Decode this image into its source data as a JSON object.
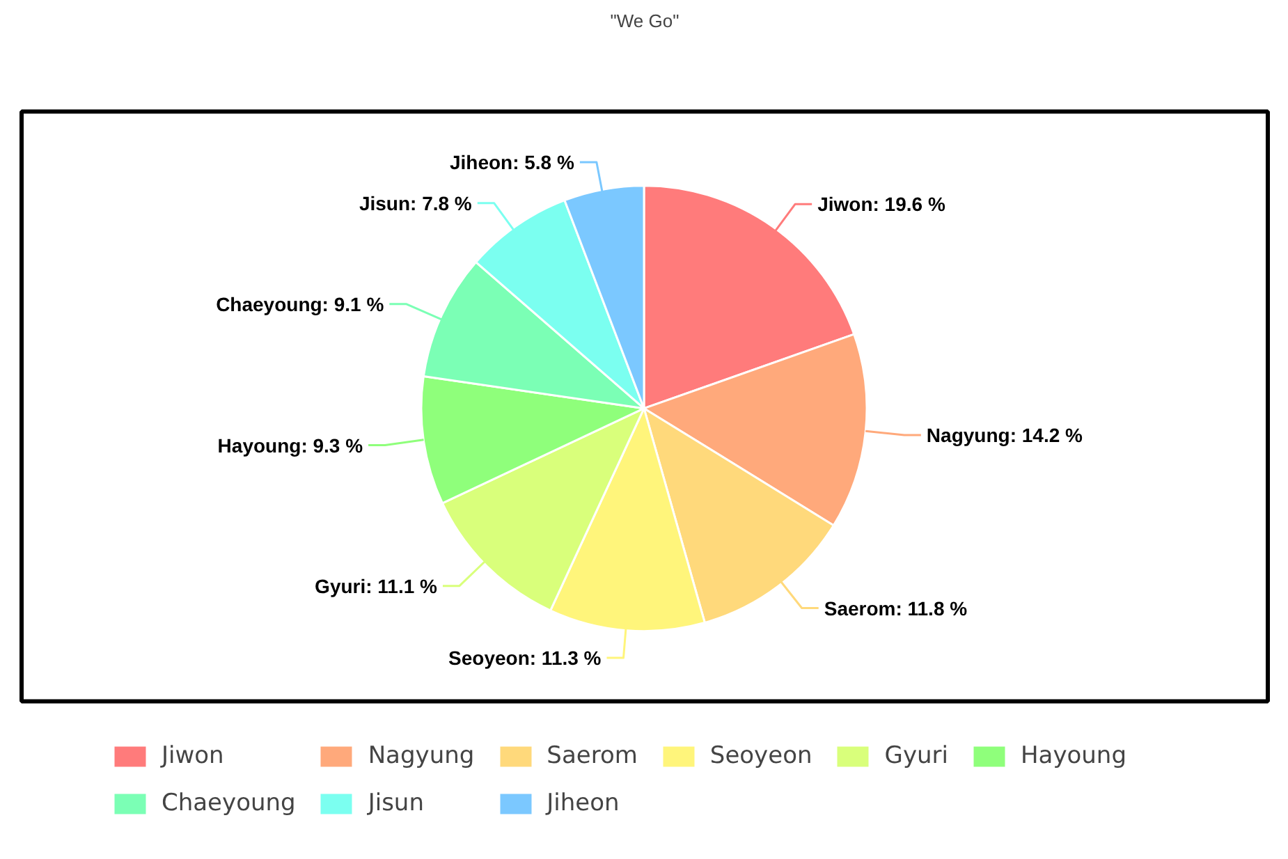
{
  "chart_data": {
    "type": "pie",
    "title": "\"We Go\"",
    "categories": [
      "Jiwon",
      "Nagyung",
      "Saerom",
      "Seoyeon",
      "Gyuri",
      "Hayoung",
      "Chaeyoung",
      "Jisun",
      "Jiheon"
    ],
    "values": [
      19.6,
      14.2,
      11.8,
      11.3,
      11.1,
      9.3,
      9.1,
      7.8,
      5.8
    ],
    "colors": [
      "#ff7b7b",
      "#ffa97b",
      "#ffd97b",
      "#fff57b",
      "#d9ff7b",
      "#8fff7b",
      "#7bffb5",
      "#7bfff0",
      "#7bc8ff"
    ],
    "value_labels": [
      "Jiwon: 19.6 %",
      "Nagyung: 14.2 %",
      "Saerom: 11.8 %",
      "Seoyeon: 11.3 %",
      "Gyuri: 11.1 %",
      "Hayoung: 9.3 %",
      "Chaeyoung: 9.1 %",
      "Jisun: 7.8 %",
      "Jiheon: 5.8 %"
    ],
    "legend": "bottom"
  }
}
